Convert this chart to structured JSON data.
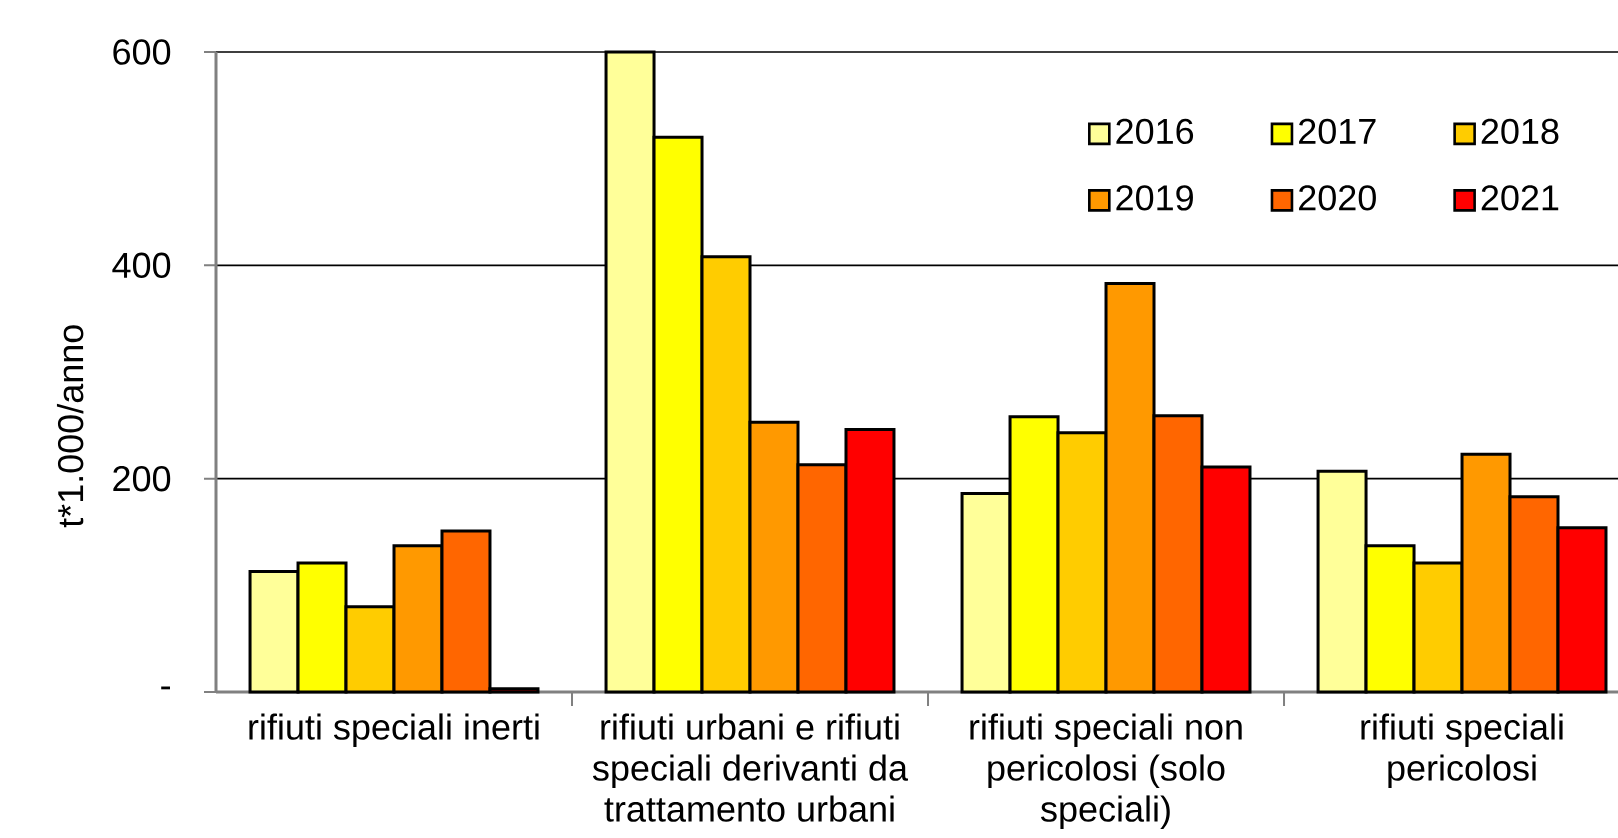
{
  "chart_data": {
    "type": "bar",
    "ylabel": "t*1.000/anno",
    "categories": [
      "rifiuti speciali inerti",
      "rifiuti urbani e rifiuti speciali derivanti da trattamento urbani",
      "rifiuti speciali non pericolosi (solo speciali)",
      "rifiuti speciali pericolosi"
    ],
    "series": [
      {
        "name": "2016",
        "color": "#ffff99",
        "values": [
          113,
          600,
          186,
          207
        ]
      },
      {
        "name": "2017",
        "color": "#ffff00",
        "values": [
          121,
          520,
          258,
          137
        ]
      },
      {
        "name": "2018",
        "color": "#ffcc00",
        "values": [
          80,
          408,
          243,
          121
        ]
      },
      {
        "name": "2019",
        "color": "#ff9900",
        "values": [
          137,
          253,
          383,
          223
        ]
      },
      {
        "name": "2020",
        "color": "#ff6600",
        "values": [
          151,
          213,
          259,
          183
        ]
      },
      {
        "name": "2021",
        "color": "#ff0000",
        "values": [
          3,
          246,
          211,
          154
        ]
      }
    ],
    "ylim": [
      0,
      600
    ],
    "yticks": [
      {
        "value": 0,
        "label": "-"
      },
      200,
      400,
      600
    ],
    "grid": "y",
    "legend": "top right"
  }
}
